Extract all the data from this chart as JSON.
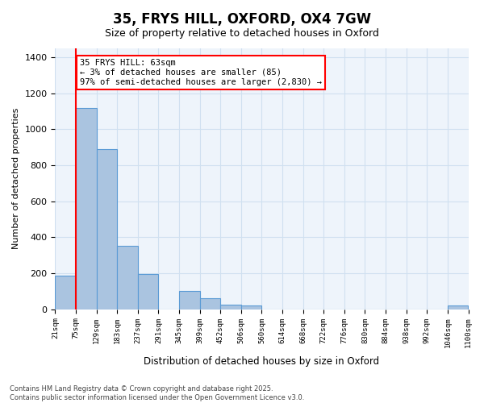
{
  "title": "35, FRYS HILL, OXFORD, OX4 7GW",
  "subtitle": "Size of property relative to detached houses in Oxford",
  "xlabel": "Distribution of detached houses by size in Oxford",
  "ylabel": "Number of detached properties",
  "annotation_title": "35 FRYS HILL: 63sqm",
  "annotation_line1": "← 3% of detached houses are smaller (85)",
  "annotation_line2": "97% of semi-detached houses are larger (2,830) →",
  "footer_line1": "Contains HM Land Registry data © Crown copyright and database right 2025.",
  "footer_line2": "Contains public sector information licensed under the Open Government Licence v3.0.",
  "bins": [
    "21sqm",
    "75sqm",
    "129sqm",
    "183sqm",
    "237sqm",
    "291sqm",
    "345sqm",
    "399sqm",
    "452sqm",
    "506sqm",
    "560sqm",
    "614sqm",
    "668sqm",
    "722sqm",
    "776sqm",
    "830sqm",
    "884sqm",
    "938sqm",
    "992sqm",
    "1046sqm",
    "1100sqm"
  ],
  "values": [
    185,
    1120,
    890,
    350,
    195,
    0,
    100,
    60,
    25,
    20,
    0,
    0,
    0,
    0,
    0,
    0,
    0,
    0,
    0,
    20
  ],
  "bar_color": "#aac4e0",
  "bar_edge_color": "#5b9bd5",
  "grid_color": "#d0e0f0",
  "background_color": "#eef4fb",
  "ylim": [
    0,
    1450
  ]
}
